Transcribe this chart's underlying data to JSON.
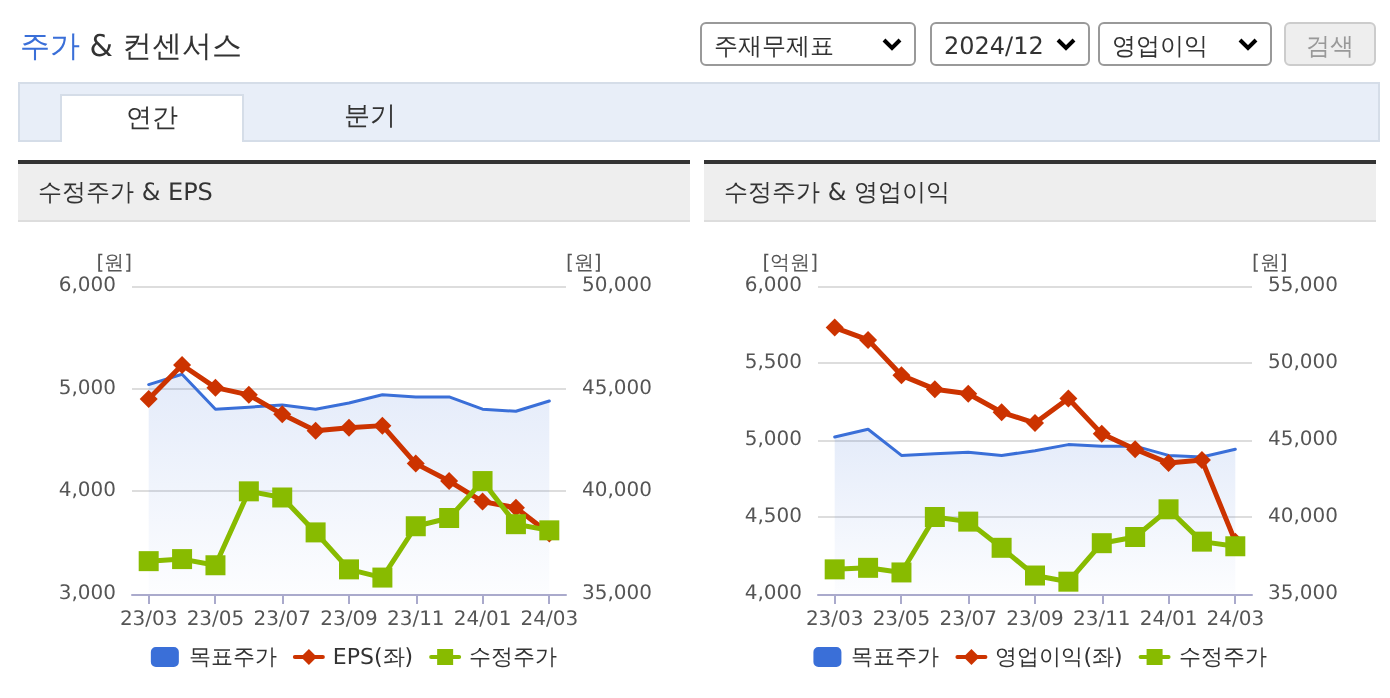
{
  "chart_data": [
    {
      "type": "other",
      "title": "주가 & 컨센서스",
      "annotations": [
        "주재무제표",
        "2024/12",
        "영업이익",
        "검색",
        "연간",
        "분기"
      ]
    },
    {
      "type": "line",
      "title": "수정주가 & EPS",
      "ylabel": "[원]",
      "y2label": "[원]",
      "categories": [
        "23/03",
        null,
        "23/05",
        null,
        "23/07",
        null,
        "23/09",
        null,
        "23/11",
        null,
        "24/01",
        null,
        "24/03"
      ],
      "series": [
        {
          "name": "목표주가",
          "type": "area",
          "axis": "y2",
          "color": "#3a6fd8",
          "marker": "none",
          "values": [
            45200,
            45700,
            44000,
            44100,
            44200,
            44000,
            44300,
            44700,
            44600,
            44600,
            44000,
            43900,
            44400
          ]
        },
        {
          "name": "EPS(좌)",
          "color": "#cc3300",
          "marker": "diamond",
          "values": [
            4900,
            5230,
            5010,
            4940,
            4750,
            4590,
            4620,
            4640,
            4270,
            4100,
            3900,
            3840,
            3590
          ]
        },
        {
          "name": "수정주가",
          "axis": "y2",
          "color": "#88bb00",
          "marker": "square",
          "values": [
            36600,
            36700,
            36400,
            40000,
            39700,
            38000,
            36200,
            35800,
            38300,
            38700,
            40500,
            38400,
            38100
          ]
        }
      ],
      "ylim": [
        3000,
        6000
      ],
      "yticks": [
        {
          "value": 3000,
          "label": "3,000"
        },
        {
          "value": 4000,
          "label": "4,000"
        },
        {
          "value": 5000,
          "label": "5,000"
        },
        {
          "value": 6000,
          "label": "6,000"
        }
      ],
      "y2lim": [
        35000,
        50000
      ],
      "y2ticks": [
        {
          "value": 35000,
          "label": "35,000"
        },
        {
          "value": 40000,
          "label": "40,000"
        },
        {
          "value": 45000,
          "label": "45,000"
        },
        {
          "value": 50000,
          "label": "50,000"
        }
      ],
      "grid": "y",
      "legend": "bottom",
      "line_style": "solid"
    },
    {
      "type": "line",
      "title": "수정주가 & 영업이익",
      "ylabel": "[억원]",
      "y2label": "[원]",
      "categories": [
        "23/03",
        null,
        "23/05",
        null,
        "23/07",
        null,
        "23/09",
        null,
        "23/11",
        null,
        "24/01",
        null,
        "24/03"
      ],
      "series": [
        {
          "name": "목표주가",
          "type": "area",
          "axis": "y2",
          "color": "#3a6fd8",
          "marker": "none",
          "values": [
            45200,
            45700,
            44000,
            44100,
            44200,
            44000,
            44300,
            44700,
            44600,
            44600,
            44000,
            43900,
            44400
          ]
        },
        {
          "name": "영업이익(좌)",
          "color": "#cc3300",
          "marker": "diamond",
          "values": [
            5730,
            5650,
            5420,
            5330,
            5300,
            5180,
            5110,
            5270,
            5040,
            4940,
            4850,
            4870,
            4340
          ]
        },
        {
          "name": "수정주가",
          "axis": "y2",
          "color": "#88bb00",
          "marker": "square",
          "values": [
            36600,
            36700,
            36400,
            40000,
            39700,
            38000,
            36200,
            35800,
            38300,
            38700,
            40500,
            38400,
            38100
          ]
        }
      ],
      "ylim": [
        4000,
        6000
      ],
      "yticks": [
        {
          "value": 4000,
          "label": "4,000"
        },
        {
          "value": 4500,
          "label": "4,500"
        },
        {
          "value": 5000,
          "label": "5,000"
        },
        {
          "value": 5500,
          "label": "5,500"
        },
        {
          "value": 6000,
          "label": "6,000"
        }
      ],
      "y2lim": [
        35000,
        55000
      ],
      "y2ticks": [
        {
          "value": 35000,
          "label": "35,000"
        },
        {
          "value": 40000,
          "label": "40,000"
        },
        {
          "value": 45000,
          "label": "45,000"
        },
        {
          "value": 50000,
          "label": "50,000"
        },
        {
          "value": 55000,
          "label": "55,000"
        }
      ],
      "grid": "y",
      "legend": "bottom",
      "line_style": "solid"
    }
  ]
}
